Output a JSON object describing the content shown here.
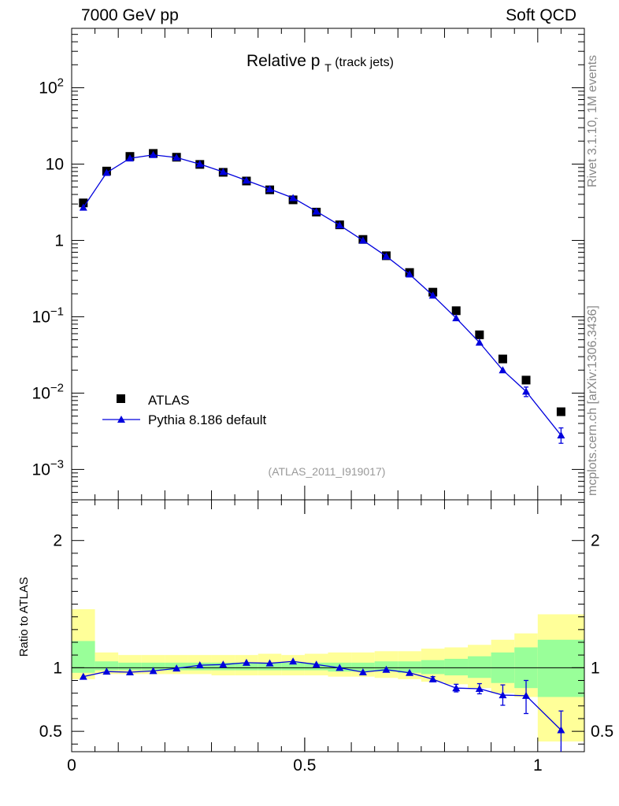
{
  "header": {
    "left": "7000 GeV pp",
    "right": "Soft QCD"
  },
  "side_labels": {
    "rivet": "Rivet 3.1.10,  1M events",
    "mcplots": "mcplots.cern.ch [arXiv:1306.3436]"
  },
  "colors": {
    "data": "#000000",
    "mc": "#0000dd",
    "band_inner": "#99ff99",
    "band_outer": "#ffff99",
    "ref_line": "#000000",
    "label_gray": "#999999"
  },
  "chart_data": [
    {
      "type": "scatter",
      "scale": "log",
      "title": "Relative p",
      "title_sub": "T",
      "title_suffix": "(track jets)",
      "analysis_label": "(ATLAS_2011_I919017)",
      "xlim": [
        0,
        1.1
      ],
      "ylim": [
        0.0004,
        600
      ],
      "y_ticks": [
        {
          "value": 100,
          "label": "10",
          "exp": "2"
        },
        {
          "value": 10,
          "label": "10",
          "exp": ""
        },
        {
          "value": 1,
          "label": "1",
          "exp": ""
        },
        {
          "value": 0.1,
          "label": "10",
          "exp": "−1"
        },
        {
          "value": 0.01,
          "label": "10",
          "exp": "−2"
        },
        {
          "value": 0.001,
          "label": "10",
          "exp": "−3"
        }
      ],
      "x": [
        0.025,
        0.075,
        0.125,
        0.175,
        0.225,
        0.275,
        0.325,
        0.375,
        0.425,
        0.475,
        0.525,
        0.575,
        0.625,
        0.675,
        0.725,
        0.775,
        0.825,
        0.875,
        0.925,
        0.975,
        1.05
      ],
      "series": [
        {
          "name": "ATLAS",
          "marker": "square",
          "values": [
            3.1,
            8.1,
            12.6,
            13.8,
            12.3,
            9.9,
            7.8,
            6.0,
            4.6,
            3.4,
            2.35,
            1.6,
            1.03,
            0.63,
            0.38,
            0.21,
            0.12,
            0.058,
            0.028,
            0.0148,
            0.0057
          ]
        },
        {
          "name": "Pythia 8.186 default",
          "marker": "triangle",
          "values": [
            2.7,
            7.7,
            11.9,
            13.2,
            12.2,
            10.0,
            7.9,
            6.1,
            4.7,
            3.6,
            2.4,
            1.58,
            1.0,
            0.62,
            0.36,
            0.19,
            0.096,
            0.046,
            0.02,
            0.0105,
            0.0028
          ],
          "err_lo": [
            0,
            0,
            0,
            0,
            0,
            0,
            0,
            0,
            0,
            0,
            0,
            0,
            0,
            0,
            0,
            0,
            0,
            0,
            0,
            0.0015,
            0.0006
          ],
          "err_hi": [
            0,
            0,
            0,
            0,
            0,
            0,
            0,
            0,
            0,
            0,
            0,
            0,
            0,
            0,
            0,
            0,
            0,
            0,
            0,
            0.0015,
            0.0007
          ]
        }
      ],
      "legend": "lower-left"
    },
    {
      "type": "scatter",
      "ylabel": "Ratio to ATLAS",
      "xlim": [
        0,
        1.1
      ],
      "ylim": [
        0.34,
        2.32
      ],
      "x_ticks": [
        {
          "value": 0,
          "label": "0"
        },
        {
          "value": 0.5,
          "label": "0.5"
        },
        {
          "value": 1,
          "label": "1"
        }
      ],
      "y_ticks": [
        {
          "value": 2,
          "label": "2"
        },
        {
          "value": 1,
          "label": "1"
        },
        {
          "value": 0.5,
          "label": "0.5"
        }
      ],
      "bin_edges": [
        0,
        0.05,
        0.1,
        0.15,
        0.2,
        0.25,
        0.3,
        0.35,
        0.4,
        0.45,
        0.5,
        0.55,
        0.6,
        0.65,
        0.7,
        0.75,
        0.8,
        0.85,
        0.9,
        0.95,
        1.0,
        1.1
      ],
      "band_inner": {
        "lo": [
          0.96,
          0.98,
          0.98,
          0.98,
          0.98,
          0.98,
          0.98,
          0.98,
          0.98,
          0.98,
          0.98,
          0.97,
          0.97,
          0.97,
          0.96,
          0.95,
          0.94,
          0.92,
          0.88,
          0.84,
          0.77
        ],
        "hi": [
          1.21,
          1.05,
          1.04,
          1.04,
          1.04,
          1.04,
          1.04,
          1.04,
          1.04,
          1.04,
          1.04,
          1.04,
          1.04,
          1.05,
          1.05,
          1.06,
          1.07,
          1.09,
          1.12,
          1.16,
          1.22
        ]
      },
      "band_outer": {
        "lo": [
          0.91,
          0.95,
          0.95,
          0.95,
          0.95,
          0.95,
          0.94,
          0.94,
          0.94,
          0.94,
          0.94,
          0.93,
          0.93,
          0.92,
          0.91,
          0.89,
          0.87,
          0.84,
          0.8,
          0.77,
          0.42
        ],
        "hi": [
          1.46,
          1.12,
          1.1,
          1.1,
          1.1,
          1.1,
          1.1,
          1.1,
          1.11,
          1.1,
          1.11,
          1.12,
          1.12,
          1.13,
          1.13,
          1.15,
          1.16,
          1.18,
          1.22,
          1.27,
          1.42
        ]
      },
      "ratio": [
        0.93,
        0.97,
        0.965,
        0.975,
        0.995,
        1.02,
        1.025,
        1.04,
        1.035,
        1.05,
        1.025,
        1.0,
        0.965,
        0.985,
        0.96,
        0.91,
        0.84,
        0.835,
        0.785,
        0.78,
        0.51
      ],
      "err_lo": [
        0,
        0,
        0,
        0,
        0,
        0,
        0,
        0,
        0,
        0,
        0,
        0,
        0,
        0,
        0,
        0.02,
        0.03,
        0.04,
        0.08,
        0.14,
        0.22
      ],
      "err_hi": [
        0,
        0,
        0,
        0,
        0,
        0,
        0,
        0,
        0,
        0,
        0,
        0,
        0,
        0,
        0,
        0.02,
        0.03,
        0.04,
        0.08,
        0.12,
        0.15
      ]
    }
  ]
}
